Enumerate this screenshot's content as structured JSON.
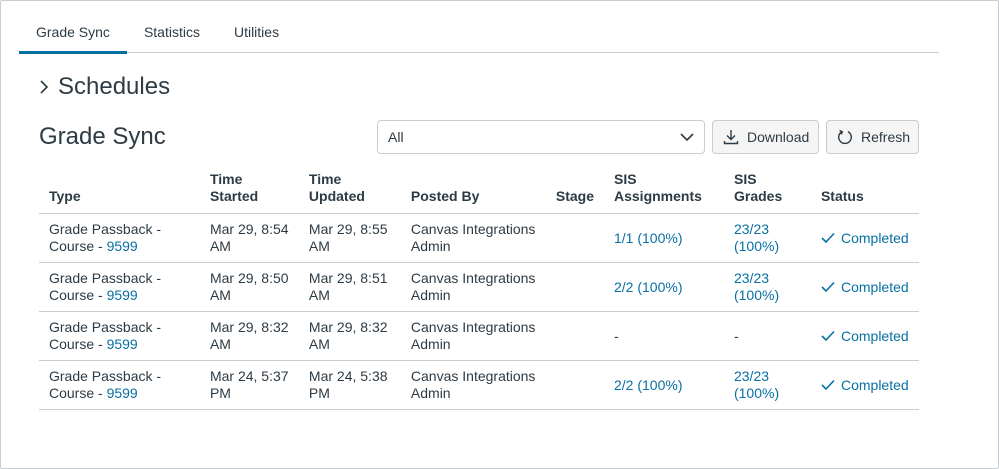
{
  "tabs": [
    {
      "label": "Grade Sync",
      "active": true
    },
    {
      "label": "Statistics",
      "active": false
    },
    {
      "label": "Utilities",
      "active": false
    }
  ],
  "schedules": {
    "title": "Schedules",
    "icon": "chevron-right-icon"
  },
  "grade_sync": {
    "title": "Grade Sync",
    "filter": {
      "selected": "All"
    },
    "download_label": "Download",
    "refresh_label": "Refresh"
  },
  "table": {
    "headers": {
      "type": "Type",
      "time_started": "Time Started",
      "time_updated": "Time Updated",
      "posted_by": "Posted By",
      "stage": "Stage",
      "sis_assignments": "SIS Assignments",
      "sis_grades": "SIS Grades",
      "status": "Status"
    },
    "rows": [
      {
        "type_prefix": "Grade Passback - Course - ",
        "course_id": "9599",
        "time_started": "Mar 29, 8:54 AM",
        "time_updated": "Mar 29, 8:55 AM",
        "posted_by": "Canvas Integrations Admin",
        "stage": "",
        "sis_assignments": "1/1 (100%)",
        "sis_grades": "23/23 (100%)",
        "status": "Completed"
      },
      {
        "type_prefix": "Grade Passback - Course - ",
        "course_id": "9599",
        "time_started": "Mar 29, 8:50 AM",
        "time_updated": "Mar 29, 8:51 AM",
        "posted_by": "Canvas Integrations Admin",
        "stage": "",
        "sis_assignments": "2/2 (100%)",
        "sis_grades": "23/23 (100%)",
        "status": "Completed"
      },
      {
        "type_prefix": "Grade Passback - Course - ",
        "course_id": "9599",
        "time_started": "Mar 29, 8:32 AM",
        "time_updated": "Mar 29, 8:32 AM",
        "posted_by": "Canvas Integrations Admin",
        "stage": "",
        "sis_assignments": "-",
        "sis_grades": "-",
        "status": "Completed"
      },
      {
        "type_prefix": "Grade Passback - Course - ",
        "course_id": "9599",
        "time_started": "Mar 24, 5:37 PM",
        "time_updated": "Mar 24, 5:38 PM",
        "posted_by": "Canvas Integrations Admin",
        "stage": "",
        "sis_assignments": "2/2 (100%)",
        "sis_grades": "23/23 (100%)",
        "status": "Completed"
      }
    ]
  },
  "colors": {
    "accent": "#0770a3",
    "text": "#2d3b45",
    "border": "#c7cdd1"
  }
}
